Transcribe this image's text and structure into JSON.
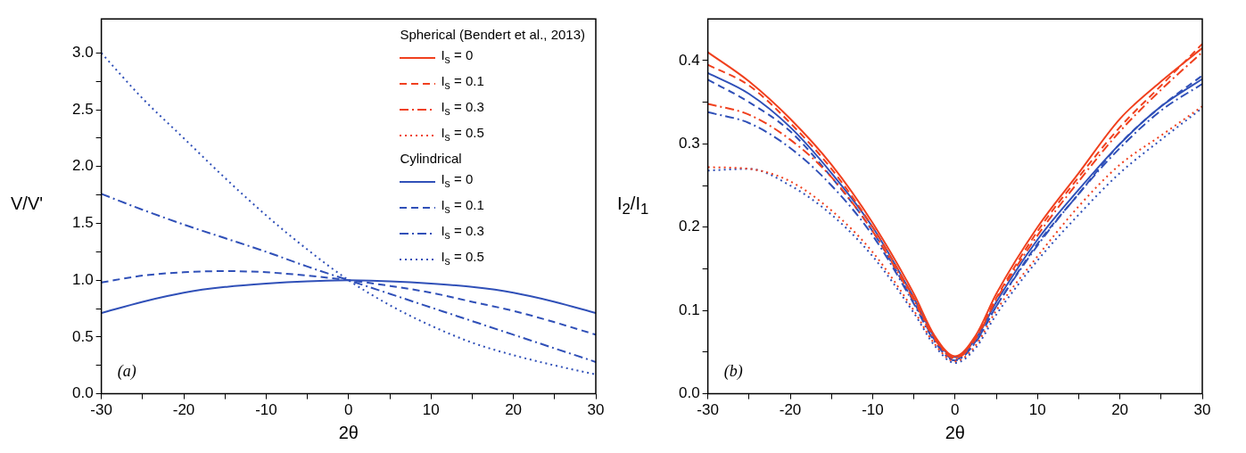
{
  "chart_data": [
    {
      "type": "line",
      "xlabel": "2θ",
      "ylabel": "V/V'",
      "annotations": [
        "(a)",
        "Spherical (Bendert et al., 2013)",
        "Cylindrical"
      ],
      "x": [
        -30,
        -25,
        -20,
        -15,
        -10,
        -5,
        0,
        5,
        10,
        15,
        20,
        25,
        30
      ],
      "xlim": [
        -30,
        30
      ],
      "xticks": [
        -30,
        {
          "value": -25,
          "label": null
        },
        -20,
        {
          "value": -15,
          "label": null
        },
        -10,
        {
          "value": -5,
          "label": null
        },
        0,
        {
          "value": 5,
          "label": null
        },
        10,
        {
          "value": 15,
          "label": null
        },
        20,
        {
          "value": 25,
          "label": null
        },
        30
      ],
      "ylim": [
        0,
        3.3
      ],
      "yticks": [
        {
          "value": 0,
          "label": "0.0"
        },
        {
          "value": 0.25,
          "label": null
        },
        0.5,
        {
          "value": 0.75,
          "label": null
        },
        {
          "value": 1,
          "label": "1.0"
        },
        {
          "value": 1.25,
          "label": null
        },
        1.5,
        {
          "value": 1.75,
          "label": null
        },
        {
          "value": 2,
          "label": "2.0"
        },
        {
          "value": 2.25,
          "label": null
        },
        2.5,
        {
          "value": 2.75,
          "label": null
        },
        {
          "value": 3,
          "label": "3.0"
        }
      ],
      "grid": false,
      "legend": "top right",
      "marker": "none",
      "series": [
        {
          "name": "I$_{s}$ = 0",
          "color": "#f0401e",
          "line_style": "solid",
          "values": [
            null,
            null,
            null,
            null,
            null,
            null,
            null,
            null,
            null,
            null,
            null,
            null,
            null
          ]
        },
        {
          "name": "I$_{s}$ = 0.1",
          "color": "#f0401e",
          "line_style": "dashed",
          "values": [
            null,
            null,
            null,
            null,
            null,
            null,
            null,
            null,
            null,
            null,
            null,
            null,
            null
          ]
        },
        {
          "name": "I$_{s}$ = 0.3",
          "color": "#f0401e",
          "line_style": "dashdot",
          "values": [
            null,
            null,
            null,
            null,
            null,
            null,
            null,
            null,
            null,
            null,
            null,
            null,
            null
          ]
        },
        {
          "name": "I$_{s}$ = 0.5",
          "color": "#f0401e",
          "line_style": "dotted",
          "values": [
            null,
            null,
            null,
            null,
            null,
            null,
            null,
            null,
            null,
            null,
            null,
            null,
            null
          ]
        },
        {
          "name": "I$_{s}$ = 0",
          "color": "#3050b8",
          "line_style": "solid",
          "values": [
            0.71,
            0.81,
            0.89,
            0.94,
            0.97,
            0.99,
            1.0,
            0.99,
            0.97,
            0.94,
            0.89,
            0.81,
            0.71
          ]
        },
        {
          "name": "I$_{s}$ = 0.1",
          "color": "#3050b8",
          "line_style": "dashed",
          "values": [
            0.98,
            1.04,
            1.07,
            1.08,
            1.07,
            1.04,
            1.0,
            0.95,
            0.89,
            0.81,
            0.73,
            0.63,
            0.52
          ]
        },
        {
          "name": "I$_{s}$ = 0.3",
          "color": "#3050b8",
          "line_style": "dashdot",
          "values": [
            1.76,
            1.62,
            1.49,
            1.37,
            1.25,
            1.12,
            1.0,
            0.88,
            0.76,
            0.64,
            0.52,
            0.4,
            0.28
          ]
        },
        {
          "name": "I$_{s}$ = 0.5",
          "color": "#3050b8",
          "line_style": "dotted",
          "values": [
            3.0,
            2.6,
            2.25,
            1.9,
            1.57,
            1.27,
            1.0,
            0.78,
            0.6,
            0.45,
            0.34,
            0.25,
            0.17
          ]
        }
      ]
    },
    {
      "type": "line",
      "xlabel": "2θ",
      "ylabel": "I$_{2}$/I$_{1}$",
      "annotations": [
        "(b)"
      ],
      "x": [
        -30,
        -25,
        -20,
        -15,
        -10,
        -5,
        -2.5,
        0,
        2.5,
        5,
        10,
        15,
        20,
        25,
        30
      ],
      "xlim": [
        -30,
        30
      ],
      "xticks": [
        -30,
        {
          "value": -25,
          "label": null
        },
        -20,
        {
          "value": -15,
          "label": null
        },
        -10,
        {
          "value": -5,
          "label": null
        },
        0,
        {
          "value": 5,
          "label": null
        },
        10,
        {
          "value": 15,
          "label": null
        },
        20,
        {
          "value": 25,
          "label": null
        },
        30
      ],
      "ylim": [
        0,
        0.45
      ],
      "yticks": [
        {
          "value": 0,
          "label": "0.0"
        },
        {
          "value": 0.05,
          "label": null
        },
        0.1,
        {
          "value": 0.15,
          "label": null
        },
        0.2,
        {
          "value": 0.25,
          "label": null
        },
        0.3,
        {
          "value": 0.35,
          "label": null
        },
        0.4
      ],
      "grid": false,
      "legend": false,
      "marker": "none",
      "series": [
        {
          "color": "#f0401e",
          "line_style": "solid",
          "values": [
            0.41,
            0.375,
            0.33,
            0.275,
            0.205,
            0.12,
            0.07,
            0.045,
            0.07,
            0.12,
            0.2,
            0.265,
            0.33,
            0.375,
            0.415
          ]
        },
        {
          "color": "#f0401e",
          "line_style": "dashed",
          "values": [
            0.395,
            0.37,
            0.325,
            0.27,
            0.2,
            0.115,
            0.068,
            0.043,
            0.068,
            0.115,
            0.195,
            0.26,
            0.32,
            0.37,
            0.42
          ]
        },
        {
          "color": "#f0401e",
          "line_style": "dashdot",
          "values": [
            0.348,
            0.335,
            0.305,
            0.26,
            0.195,
            0.112,
            0.066,
            0.042,
            0.066,
            0.113,
            0.19,
            0.255,
            0.315,
            0.365,
            0.41
          ]
        },
        {
          "color": "#f0401e",
          "line_style": "dotted",
          "values": [
            0.272,
            0.27,
            0.255,
            0.22,
            0.17,
            0.1,
            0.06,
            0.039,
            0.058,
            0.1,
            0.165,
            0.225,
            0.275,
            0.31,
            0.345
          ]
        },
        {
          "color": "#3050b8",
          "line_style": "solid",
          "values": [
            0.385,
            0.36,
            0.32,
            0.265,
            0.2,
            0.115,
            0.068,
            0.044,
            0.066,
            0.11,
            0.185,
            0.245,
            0.3,
            0.345,
            0.378
          ]
        },
        {
          "color": "#3050b8",
          "line_style": "dashed",
          "values": [
            0.377,
            0.35,
            0.315,
            0.26,
            0.195,
            0.11,
            0.065,
            0.041,
            0.063,
            0.105,
            0.18,
            0.24,
            0.3,
            0.345,
            0.382
          ]
        },
        {
          "color": "#3050b8",
          "line_style": "dashdot",
          "values": [
            0.338,
            0.325,
            0.295,
            0.25,
            0.19,
            0.108,
            0.063,
            0.04,
            0.062,
            0.105,
            0.178,
            0.24,
            0.295,
            0.34,
            0.372
          ]
        },
        {
          "color": "#3050b8",
          "line_style": "dotted",
          "values": [
            0.268,
            0.27,
            0.25,
            0.215,
            0.165,
            0.097,
            0.058,
            0.037,
            0.055,
            0.095,
            0.16,
            0.215,
            0.265,
            0.305,
            0.343
          ]
        }
      ]
    }
  ]
}
